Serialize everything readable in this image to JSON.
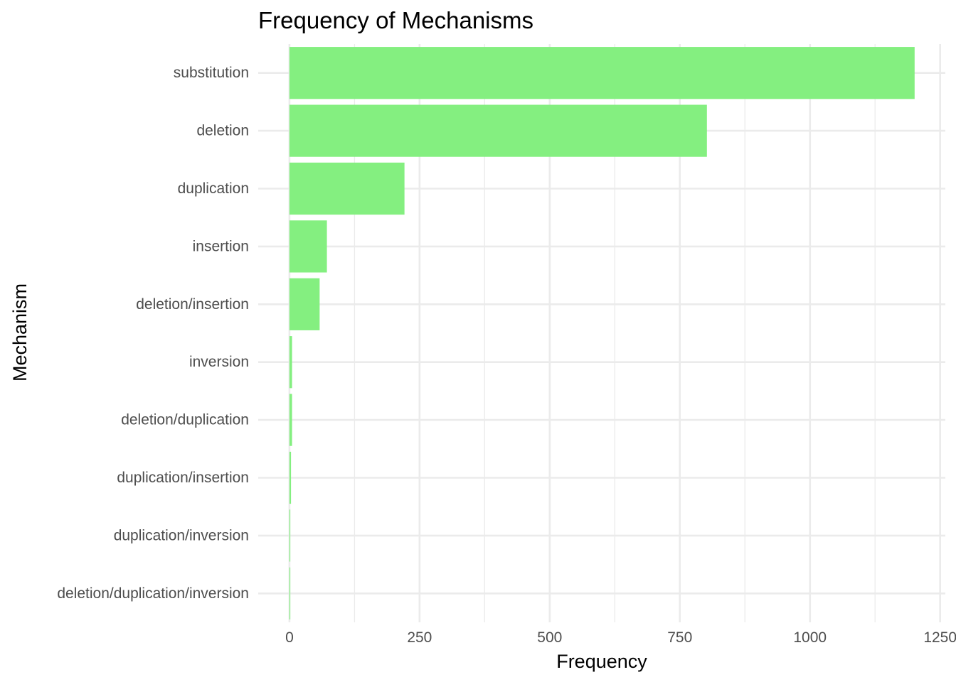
{
  "chart_data": {
    "type": "bar",
    "orientation": "horizontal",
    "title": "Frequency of Mechanisms",
    "xlabel": "Frequency",
    "ylabel": "Mechanism",
    "categories": [
      "substitution",
      "deletion",
      "duplication",
      "insertion",
      "deletion/insertion",
      "inversion",
      "deletion/duplication",
      "duplication/insertion",
      "duplication/inversion",
      "deletion/duplication/inversion"
    ],
    "values": [
      1201,
      802,
      221,
      72,
      58,
      5,
      5,
      3,
      1,
      1
    ],
    "xlim": [
      -60,
      1260
    ],
    "xticks": [
      0,
      250,
      500,
      750,
      1000,
      1250
    ],
    "xtick_labels": [
      "0",
      "250",
      "500",
      "750",
      "1000",
      "1250"
    ],
    "grid": true,
    "bar_color": "#84ef80",
    "grid_color": "#ebebeb"
  }
}
